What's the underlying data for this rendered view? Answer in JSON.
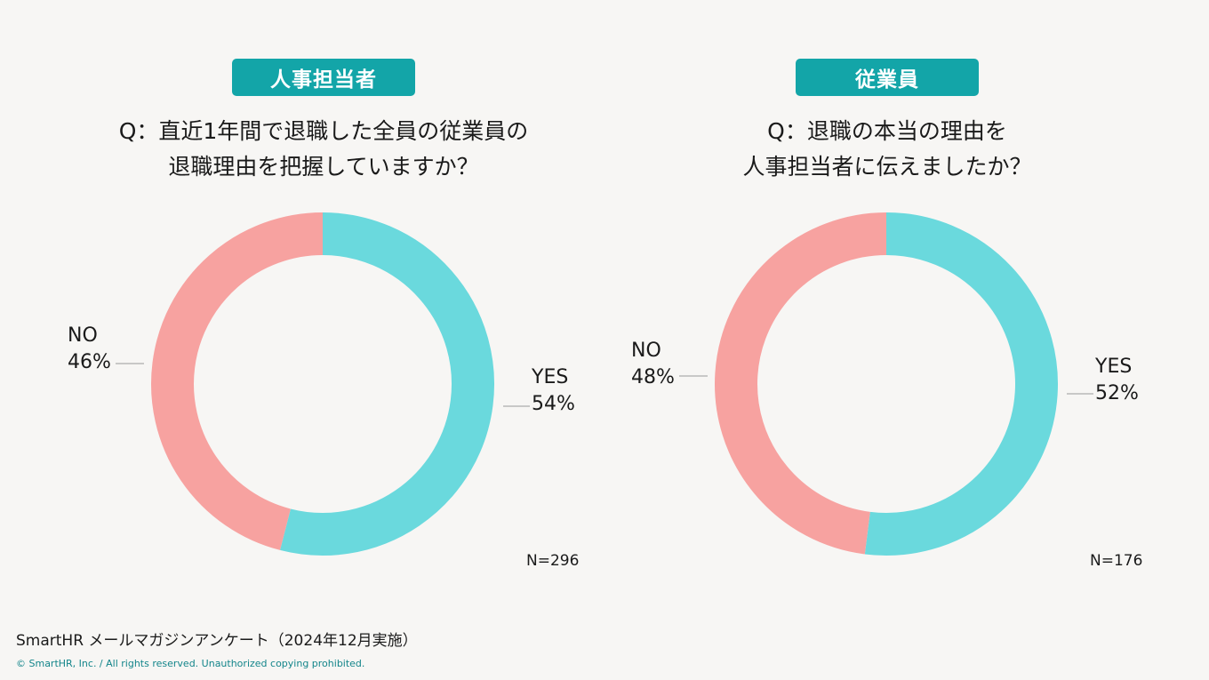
{
  "charts": [
    {
      "badge": "人事担当者",
      "question_lines": [
        "Q：直近1年間で退職した全員の従業員の",
        "退職理由を把握していますか？"
      ],
      "n_label": "N=296"
    },
    {
      "badge": "従業員",
      "question_lines": [
        "Q：退職の本当の理由を",
        "人事担当者に伝えましたか？"
      ],
      "n_label": "N=176"
    }
  ],
  "chart_data": [
    {
      "type": "pie",
      "title": "Q：直近1年間で退職した全員の従業員の退職理由を把握していますか？",
      "categories": [
        "YES",
        "NO"
      ],
      "values": [
        54,
        46
      ],
      "value_labels": [
        "54%",
        "46%"
      ],
      "colors": [
        "#6ad9dd",
        "#f7a2a0"
      ],
      "donut": true
    },
    {
      "type": "pie",
      "title": "Q：退職の本当の理由を人事担当者に伝えましたか？",
      "categories": [
        "YES",
        "NO"
      ],
      "values": [
        52,
        48
      ],
      "value_labels": [
        "52%",
        "48%"
      ],
      "colors": [
        "#6ad9dd",
        "#f7a2a0"
      ],
      "donut": true
    }
  ],
  "footer": "SmartHR メールマガジンアンケート（2024年12月実施）",
  "copyright": "© SmartHR, Inc. / All rights reserved. Unauthorized copying prohibited."
}
